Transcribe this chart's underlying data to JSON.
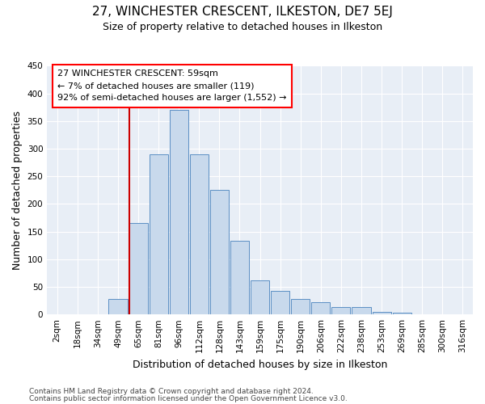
{
  "title1": "27, WINCHESTER CRESCENT, ILKESTON, DE7 5EJ",
  "title2": "Size of property relative to detached houses in Ilkeston",
  "xlabel": "Distribution of detached houses by size in Ilkeston",
  "ylabel": "Number of detached properties",
  "footnote1": "Contains HM Land Registry data © Crown copyright and database right 2024.",
  "footnote2": "Contains public sector information licensed under the Open Government Licence v3.0.",
  "annotation_line1": "27 WINCHESTER CRESCENT: 59sqm",
  "annotation_line2": "← 7% of detached houses are smaller (119)",
  "annotation_line3": "92% of semi-detached houses are larger (1,552) →",
  "bar_color": "#c8d9ec",
  "bar_edge_color": "#5b8fc4",
  "red_line_color": "#cc0000",
  "background_color": "#e8eef6",
  "grid_color": "#ffffff",
  "categories": [
    "2sqm",
    "18sqm",
    "34sqm",
    "49sqm",
    "65sqm",
    "81sqm",
    "96sqm",
    "112sqm",
    "128sqm",
    "143sqm",
    "159sqm",
    "175sqm",
    "190sqm",
    "206sqm",
    "222sqm",
    "238sqm",
    "253sqm",
    "269sqm",
    "285sqm",
    "300sqm",
    "316sqm"
  ],
  "values": [
    0,
    0,
    0,
    28,
    165,
    290,
    370,
    290,
    225,
    133,
    62,
    42,
    28,
    22,
    14,
    14,
    5,
    3,
    0,
    0,
    0
  ],
  "red_line_bin_index": 4,
  "ylim": [
    0,
    450
  ],
  "yticks": [
    0,
    50,
    100,
    150,
    200,
    250,
    300,
    350,
    400,
    450
  ],
  "title1_fontsize": 11,
  "title2_fontsize": 9,
  "xlabel_fontsize": 9,
  "ylabel_fontsize": 9,
  "tick_fontsize": 7.5,
  "footnote_fontsize": 6.5,
  "annot_fontsize": 8
}
